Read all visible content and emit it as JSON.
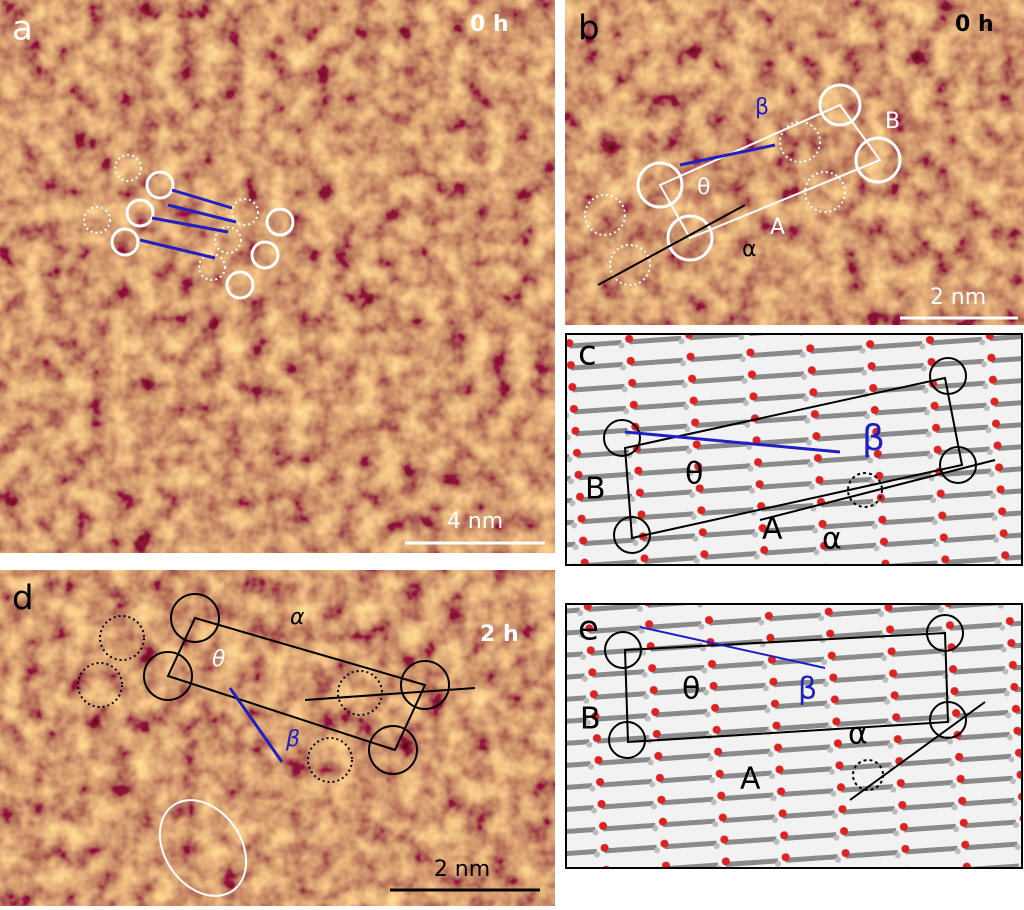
{
  "panels": [
    {
      "label": "a",
      "time": "0 h",
      "scale_bar": "4 nm"
    },
    {
      "label": "b",
      "time": "0 h",
      "scale_bar": "2 nm",
      "symbols": [
        "β",
        "θ",
        "α",
        "A",
        "B"
      ]
    },
    {
      "label": "c",
      "symbols": [
        "β",
        "θ",
        "α",
        "A",
        "B"
      ]
    },
    {
      "label": "d",
      "time": "2 h",
      "scale_bar": "2 nm",
      "symbols": [
        "θ",
        "α",
        "β"
      ]
    },
    {
      "label": "e",
      "symbols": [
        "β",
        "θ",
        "α",
        "A",
        "B"
      ]
    }
  ]
}
